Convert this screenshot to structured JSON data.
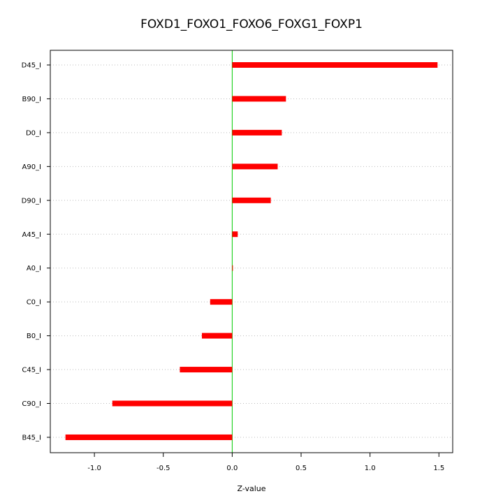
{
  "chart_data": {
    "type": "bar",
    "orientation": "horizontal",
    "title": "FOXD1_FOXO1_FOXO6_FOXG1_FOXP1",
    "xlabel": "Z-value",
    "ylabel": "",
    "xlim": [
      -1.32,
      1.6
    ],
    "xticks": [
      -1.0,
      -0.5,
      0.0,
      0.5,
      1.0,
      1.5
    ],
    "xtick_labels": [
      "-1.0",
      "-0.5",
      "0.0",
      "0.5",
      "1.0",
      "1.5"
    ],
    "categories": [
      "D45_I",
      "B90_I",
      "D0_I",
      "A90_I",
      "D90_I",
      "A45_I",
      "A0_I",
      "C0_I",
      "B0_I",
      "C45_I",
      "C90_I",
      "B45_I"
    ],
    "values": [
      1.49,
      0.39,
      0.36,
      0.33,
      0.28,
      0.04,
      0.005,
      -0.16,
      -0.22,
      -0.38,
      -0.87,
      -1.21
    ],
    "grid": "horizontal dotted",
    "legend": "none",
    "colors": {
      "bar": "#ff0000",
      "zero_line": "#00cc00",
      "grid": "#bbbbbb",
      "axis": "#000000"
    }
  }
}
